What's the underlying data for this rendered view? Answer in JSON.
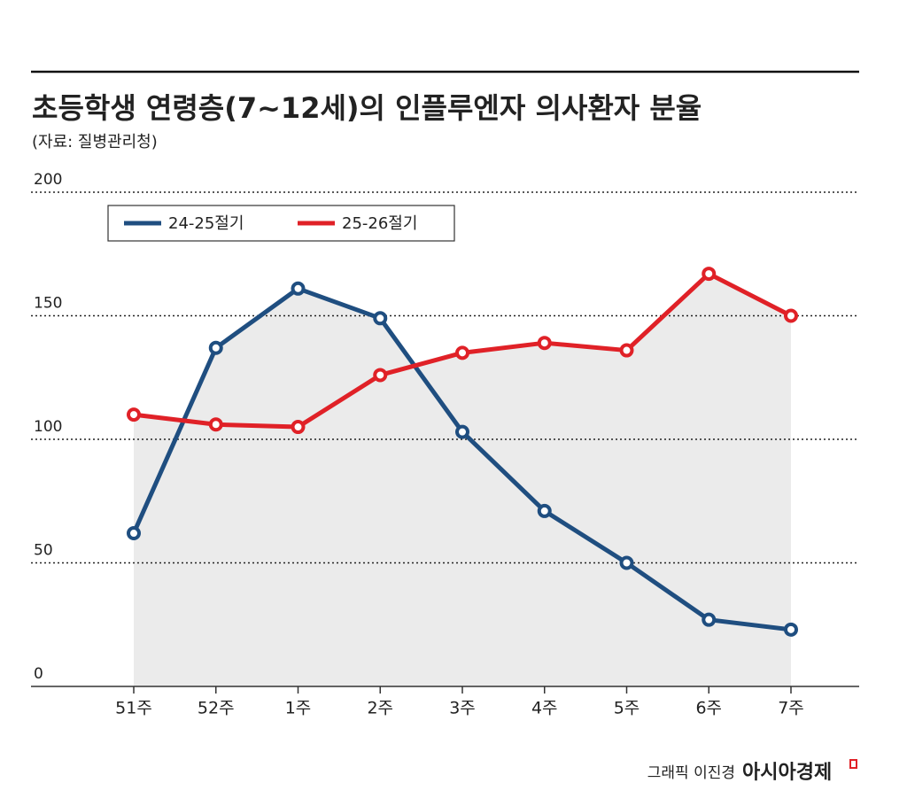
{
  "chart_data": {
    "type": "line",
    "title": "초등학생 연령층(7~12세)의 인플루엔자 의사환자 분율",
    "subtitle": "(자료: 질병관리청)",
    "categories": [
      "51주",
      "52주",
      "1주",
      "2주",
      "3주",
      "4주",
      "5주",
      "6주",
      "7주"
    ],
    "series": [
      {
        "name": "24-25절기",
        "color": "#1f4e80",
        "values": [
          62,
          137,
          161,
          149,
          103,
          71,
          50,
          27,
          23
        ]
      },
      {
        "name": "25-26절기",
        "color": "#e02127",
        "values": [
          110,
          106,
          105,
          126,
          135,
          139,
          136,
          167,
          150
        ]
      }
    ],
    "ylim": [
      0,
      200
    ],
    "yticks": [
      0,
      50,
      100,
      150,
      200
    ],
    "grid": true,
    "credit": "그래픽 이진경",
    "brand": "아시아경제"
  }
}
